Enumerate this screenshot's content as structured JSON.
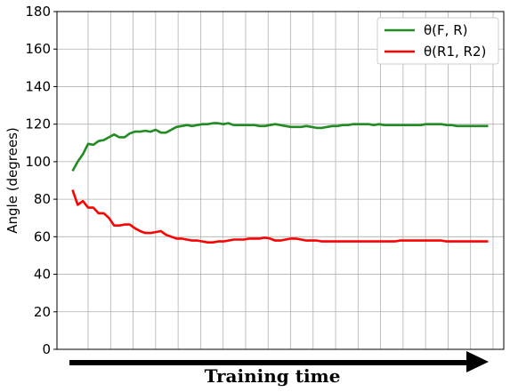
{
  "chart_data": {
    "type": "line",
    "title": "",
    "xlabel": "",
    "ylabel": "Angle (degrees)",
    "ylim": [
      0,
      180
    ],
    "yticks": [
      0,
      20,
      40,
      60,
      80,
      100,
      120,
      140,
      160,
      180
    ],
    "xlim": [
      -3,
      83
    ],
    "grid": true,
    "legend_position": "top-right",
    "x": [
      0,
      1,
      2,
      3,
      4,
      5,
      6,
      7,
      8,
      9,
      10,
      11,
      12,
      13,
      14,
      15,
      16,
      17,
      18,
      19,
      20,
      21,
      22,
      23,
      24,
      25,
      26,
      27,
      28,
      29,
      30,
      31,
      32,
      33,
      34,
      35,
      36,
      37,
      38,
      39,
      40,
      41,
      42,
      43,
      44,
      45,
      46,
      47,
      48,
      49,
      50,
      51,
      52,
      53,
      54,
      55,
      56,
      57,
      58,
      59,
      60,
      61,
      62,
      63,
      64,
      65,
      66,
      67,
      68,
      69,
      70,
      71,
      72,
      73,
      74,
      75,
      76,
      77,
      78,
      79,
      80
    ],
    "series": [
      {
        "name": "θ(F, R)",
        "color": "#228b22",
        "values": [
          95,
          100,
          104,
          109.5,
          109,
          111,
          111.5,
          113,
          114.5,
          113,
          113,
          115,
          116,
          116,
          116.5,
          116,
          117,
          115.5,
          115.5,
          117,
          118.5,
          119,
          119.5,
          119,
          119.5,
          120,
          120,
          120.5,
          120.5,
          120,
          120.5,
          119.5,
          119.5,
          119.5,
          119.5,
          119.5,
          119,
          119,
          119.5,
          120,
          119.5,
          119,
          118.5,
          118.5,
          118.5,
          119,
          118.5,
          118,
          118,
          118.5,
          119,
          119,
          119.5,
          119.5,
          120,
          120,
          120,
          120,
          119.5,
          120,
          119.5,
          119.5,
          119.5,
          119.5,
          119.5,
          119.5,
          119.5,
          119.5,
          120,
          120,
          120,
          120,
          119.5,
          119.5,
          119,
          119,
          119,
          119,
          119,
          119,
          119
        ]
      },
      {
        "name": "θ(R1, R2)",
        "color": "#ff0000",
        "values": [
          85,
          77,
          79,
          75.5,
          75.5,
          72.5,
          72.5,
          70,
          66,
          66,
          66.5,
          66.5,
          64.5,
          63,
          62,
          62,
          62.5,
          63,
          61,
          60,
          59,
          59,
          58.5,
          58,
          58,
          57.5,
          57,
          57,
          57.5,
          57.5,
          58,
          58.5,
          58.5,
          58.5,
          59,
          59,
          59,
          59.5,
          59,
          58,
          58,
          58.5,
          59,
          59,
          58.5,
          58,
          58,
          58,
          57.5,
          57.5,
          57.5,
          57.5,
          57.5,
          57.5,
          57.5,
          57.5,
          57.5,
          57.5,
          57.5,
          57.5,
          57.5,
          57.5,
          57.5,
          58,
          58,
          58,
          58,
          58,
          58,
          58,
          58,
          58,
          57.5,
          57.5,
          57.5,
          57.5,
          57.5,
          57.5,
          57.5,
          57.5,
          57.5
        ]
      }
    ],
    "annotation": "Training time"
  }
}
